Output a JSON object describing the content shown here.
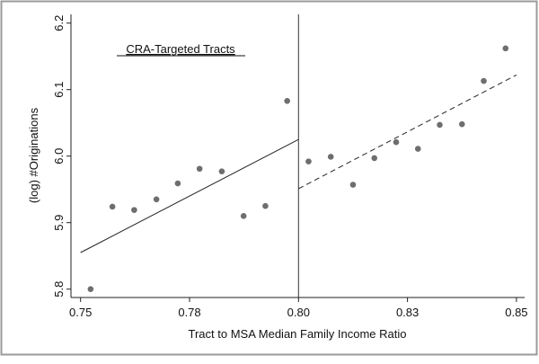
{
  "chart_data": {
    "type": "scatter",
    "title": "",
    "annotation": "CRA-Targeted Tracts",
    "xlabel": "Tract to MSA Median Family Income Ratio",
    "ylabel": "(log) #Originations",
    "xlim": [
      0.745,
      0.852
    ],
    "ylim": [
      5.787,
      6.205
    ],
    "grid": false,
    "legend": "none",
    "x_ticks": [
      {
        "value": 0.75,
        "label": "0.75"
      },
      {
        "value": 0.775,
        "label": "0.78"
      },
      {
        "value": 0.8,
        "label": "0.80"
      },
      {
        "value": 0.825,
        "label": "0.83"
      },
      {
        "value": 0.85,
        "label": "0.85"
      }
    ],
    "y_ticks": [
      {
        "value": 5.8,
        "label": "5.8"
      },
      {
        "value": 5.9,
        "label": "5.9"
      },
      {
        "value": 6.0,
        "label": "6.0"
      },
      {
        "value": 6.1,
        "label": "6.1"
      },
      {
        "value": 6.2,
        "label": "6.2"
      }
    ],
    "cutoff": 0.8,
    "points": [
      {
        "x": 0.7523,
        "y": 5.8
      },
      {
        "x": 0.7573,
        "y": 5.924
      },
      {
        "x": 0.7623,
        "y": 5.919
      },
      {
        "x": 0.7674,
        "y": 5.935
      },
      {
        "x": 0.7723,
        "y": 5.959
      },
      {
        "x": 0.7773,
        "y": 5.981
      },
      {
        "x": 0.7824,
        "y": 5.977
      },
      {
        "x": 0.7874,
        "y": 5.91
      },
      {
        "x": 0.7924,
        "y": 5.925
      },
      {
        "x": 0.7974,
        "y": 6.083
      },
      {
        "x": 0.8023,
        "y": 5.992
      },
      {
        "x": 0.8074,
        "y": 5.999
      },
      {
        "x": 0.8125,
        "y": 5.957
      },
      {
        "x": 0.8174,
        "y": 5.997
      },
      {
        "x": 0.8224,
        "y": 6.021
      },
      {
        "x": 0.8274,
        "y": 6.011
      },
      {
        "x": 0.8324,
        "y": 6.047
      },
      {
        "x": 0.8375,
        "y": 6.048
      },
      {
        "x": 0.8425,
        "y": 6.113
      },
      {
        "x": 0.8475,
        "y": 6.162
      }
    ],
    "fit_lines": [
      {
        "style": "solid",
        "x": [
          0.75,
          0.8
        ],
        "y": [
          5.855,
          6.025
        ]
      },
      {
        "style": "dashed",
        "x": [
          0.8,
          0.85
        ],
        "y": [
          5.951,
          6.122
        ]
      }
    ],
    "colors": {
      "points": "#6e6e6e",
      "lines": "#222222",
      "frame": "#9a9a9a"
    }
  }
}
